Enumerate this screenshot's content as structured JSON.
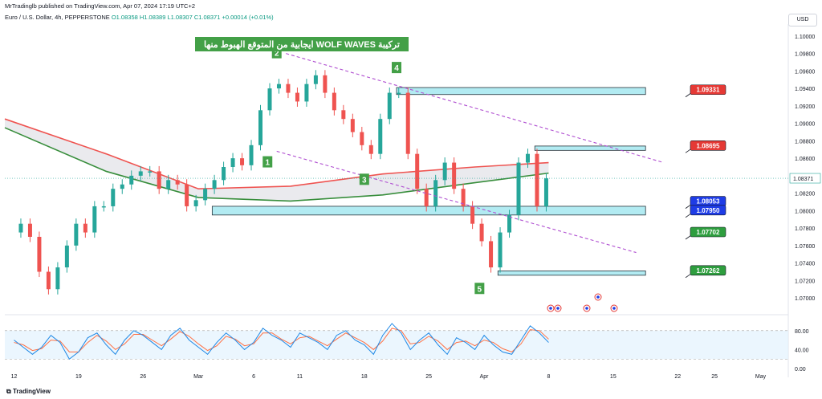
{
  "header": {
    "published": "MrTradinglb published on TradingView.com, Apr 07, 2024 17:19 UTC+2",
    "symbol": "Euro / U.S. Dollar, 4h, PEPPERSTONE",
    "ohlc": "O1.08358 H1.08389 L1.08307 C1.08371 +0.00014 (+0.01%)"
  },
  "currency_button": "USD",
  "footer_brand": "TradingView",
  "chart_data": {
    "type": "line",
    "title": "تركيبة WOLF WAVES ايجابية من المتوقع الهبوط منها",
    "ylim": [
      1.069,
      1.101
    ],
    "y_ticks": [
      "1.10000",
      "1.09800",
      "1.09600",
      "1.09400",
      "1.09200",
      "1.09000",
      "1.08800",
      "1.08600",
      "1.08400",
      "1.08200",
      "1.08000",
      "1.07800",
      "1.07600",
      "1.07400",
      "1.07200",
      "1.07000"
    ],
    "y_tick_values": [
      1.1,
      1.098,
      1.096,
      1.094,
      1.092,
      1.09,
      1.088,
      1.086,
      1.084,
      1.082,
      1.08,
      1.078,
      1.076,
      1.074,
      1.072,
      1.07
    ],
    "x_ticks": [
      "12",
      "19",
      "26",
      "Mar",
      "6",
      "11",
      "18",
      "25",
      "Apr",
      "8",
      "15",
      "22",
      "25",
      "May"
    ],
    "x_tick_days": [
      0,
      7,
      14,
      20,
      26,
      31,
      38,
      45,
      51,
      58,
      65,
      72,
      76,
      81
    ],
    "x_day_range": [
      -1,
      84
    ],
    "current_price": "1.08371",
    "close_series": {
      "x": [
        0,
        1,
        2,
        3,
        4,
        5,
        6,
        7,
        8,
        9,
        10,
        11,
        12,
        13,
        14,
        15,
        16,
        17,
        18,
        19,
        20,
        21,
        22,
        23,
        24,
        25,
        26,
        27,
        28,
        29,
        30,
        31,
        32,
        33,
        34,
        35,
        36,
        37,
        38,
        39,
        40,
        41,
        42,
        43,
        44,
        45,
        46,
        47,
        48,
        49,
        50,
        51,
        52,
        53,
        54,
        55,
        56,
        57,
        58
      ],
      "y": [
        1.0775,
        1.0785,
        1.077,
        1.073,
        1.071,
        1.0735,
        1.076,
        1.0785,
        1.0775,
        1.0805,
        1.0805,
        1.0825,
        1.083,
        1.084,
        1.0845,
        1.0845,
        1.0825,
        1.0835,
        1.083,
        1.0805,
        1.0812,
        1.0825,
        1.0835,
        1.085,
        1.086,
        1.0852,
        1.0875,
        1.0915,
        1.094,
        1.0945,
        1.0935,
        1.0925,
        1.0945,
        1.0955,
        1.0935,
        1.0915,
        1.0905,
        1.089,
        1.0875,
        1.0865,
        1.0905,
        1.0935,
        1.0935,
        1.0865,
        1.0825,
        1.0805,
        1.0835,
        1.0855,
        1.0825,
        1.0805,
        1.0785,
        1.0765,
        1.0735,
        1.0775,
        1.0795,
        1.0855,
        1.0865,
        1.0805,
        1.0837
      ]
    },
    "series": [
      {
        "name": "",
        "color": "#ef5350",
        "x": [
          -1,
          10,
          20,
          30,
          40,
          50,
          58
        ],
        "y": [
          1.0905,
          1.0865,
          1.0825,
          1.0828,
          1.0842,
          1.085,
          1.0855
        ]
      },
      {
        "name": "",
        "color": "#388e3c",
        "x": [
          -1,
          10,
          20,
          30,
          40,
          50,
          58
        ],
        "y": [
          1.0895,
          1.0845,
          1.0815,
          1.0811,
          1.0818,
          1.0832,
          1.0843
        ]
      }
    ],
    "zones": [
      {
        "label": "1.09331",
        "y_low": 1.0933,
        "y_high": 1.0941,
        "x_start": 41.5,
        "label_color": "#e53935"
      },
      {
        "label": "1.08695",
        "y_low": 1.0869,
        "y_high": 1.0874,
        "x_start": 56.5,
        "label_color": "#e53935"
      },
      {
        "label": "1.08053",
        "label2": "1.07950",
        "y_low": 1.0795,
        "y_high": 1.0805,
        "x_start": 21.5,
        "label_color": "#1e3ce6"
      },
      {
        "label": "1.07702",
        "y_low": null,
        "y_high": null,
        "x_start": null,
        "label_color": "#2e9e3e"
      },
      {
        "label": "1.07262",
        "y_low": 1.0726,
        "y_high": 1.0731,
        "x_start": 52.5,
        "label_color": "#2e9e3e"
      }
    ],
    "label_prices": [
      1.0933,
      1.0869,
      1.08053,
      1.0795,
      1.077,
      1.0726
    ],
    "wave_points": [
      {
        "label": "1",
        "x": 27.5,
        "y": 1.0855
      },
      {
        "label": "2",
        "x": 28.5,
        "y": 1.098
      },
      {
        "label": "3",
        "x": 38.0,
        "y": 1.0835
      },
      {
        "label": "4",
        "x": 41.5,
        "y": 1.0963
      },
      {
        "label": "5",
        "x": 50.5,
        "y": 1.071
      }
    ],
    "trend_lines": [
      {
        "x": [
          29.5,
          70.5
        ],
        "y": [
          1.098,
          1.0855
        ]
      },
      {
        "x": [
          28.5,
          67.5
        ],
        "y": [
          1.0868,
          1.0752
        ]
      }
    ],
    "oscillator": {
      "ticks": [
        "80.00",
        "40.00",
        "0.00"
      ],
      "tick_values": [
        80,
        40,
        0
      ],
      "ylim": [
        -5,
        100
      ],
      "band": [
        20,
        80
      ],
      "k": [
        60,
        45,
        30,
        45,
        70,
        55,
        20,
        35,
        65,
        75,
        50,
        30,
        60,
        80,
        70,
        55,
        40,
        70,
        85,
        60,
        45,
        30,
        55,
        75,
        60,
        40,
        55,
        85,
        70,
        60,
        45,
        75,
        65,
        55,
        40,
        70,
        80,
        60,
        50,
        30,
        70,
        95,
        75,
        40,
        60,
        75,
        50,
        30,
        65,
        55,
        40,
        70,
        50,
        35,
        30,
        60,
        90,
        75,
        55
      ],
      "d": [
        55,
        50,
        38,
        42,
        60,
        58,
        35,
        35,
        55,
        70,
        58,
        40,
        52,
        72,
        72,
        60,
        48,
        62,
        78,
        68,
        52,
        38,
        48,
        68,
        62,
        48,
        52,
        75,
        75,
        62,
        52,
        65,
        68,
        58,
        48,
        62,
        75,
        65,
        55,
        40,
        58,
        85,
        80,
        52,
        55,
        68,
        58,
        40,
        55,
        58,
        48,
        60,
        55,
        42,
        35,
        52,
        82,
        80,
        62
      ]
    },
    "event_icons": 5
  }
}
